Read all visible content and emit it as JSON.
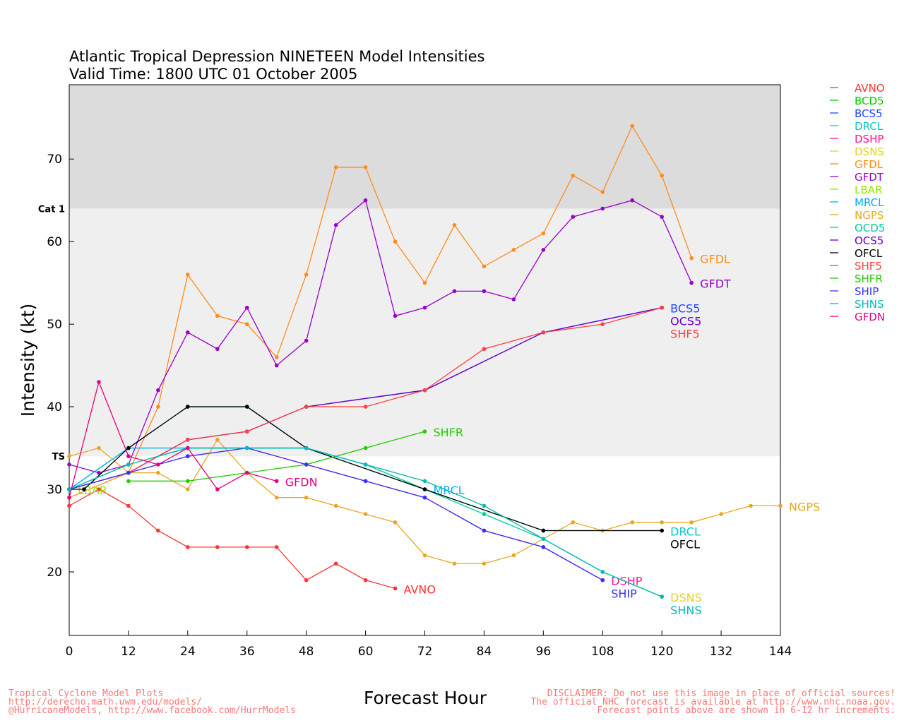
{
  "chart_data": {
    "type": "line",
    "title": [
      "Atlantic Tropical Depression NINETEEN Model Intensities",
      "Valid Time: 1800 UTC 01 October 2005"
    ],
    "xlabel": "Forecast Hour",
    "ylabel": "Intensity (kt)",
    "xlim": [
      0,
      144
    ],
    "ylim": [
      12.3,
      79
    ],
    "xticks": [
      0,
      12,
      24,
      36,
      48,
      60,
      72,
      84,
      96,
      108,
      120,
      132,
      144
    ],
    "yticks": [
      20,
      30,
      40,
      50,
      60,
      70
    ],
    "bands": [
      {
        "label": "TS",
        "from": 34,
        "to": 64,
        "color": "#efefef"
      },
      {
        "label": "Cat 1",
        "from": 64,
        "to": 79,
        "color": "#dcdcdc"
      }
    ],
    "legend_position": "right",
    "series": [
      {
        "name": "AVNO",
        "color": "#ff3333",
        "label": true,
        "points": [
          [
            0,
            28
          ],
          [
            6,
            30
          ],
          [
            12,
            28
          ],
          [
            18,
            25
          ],
          [
            24,
            23
          ],
          [
            30,
            23
          ],
          [
            36,
            23
          ],
          [
            42,
            23
          ],
          [
            48,
            19
          ],
          [
            54,
            21
          ],
          [
            60,
            19
          ],
          [
            66,
            18
          ]
        ]
      },
      {
        "name": "BCD5",
        "color": "#00cc00",
        "label": false,
        "points": []
      },
      {
        "name": "BCS5",
        "color": "#2244ff",
        "label": true,
        "points": [
          [
            0,
            30
          ],
          [
            12,
            32
          ],
          [
            24,
            36
          ],
          [
            36,
            37
          ],
          [
            48,
            40
          ],
          [
            72,
            42
          ],
          [
            96,
            49
          ],
          [
            120,
            52
          ]
        ]
      },
      {
        "name": "DRCL",
        "color": "#00cccc",
        "label": true,
        "points": [
          [
            0,
            30
          ],
          [
            12,
            35
          ],
          [
            24,
            40
          ],
          [
            36,
            40
          ],
          [
            48,
            35
          ],
          [
            72,
            30
          ],
          [
            96,
            25
          ],
          [
            120,
            25
          ]
        ]
      },
      {
        "name": "DSHP",
        "color": "#ff1493",
        "label": true,
        "points": [
          [
            0,
            30
          ],
          [
            12,
            32
          ],
          [
            24,
            34
          ],
          [
            36,
            35
          ],
          [
            48,
            33
          ],
          [
            60,
            31
          ],
          [
            72,
            29
          ],
          [
            84,
            25
          ],
          [
            96,
            23
          ],
          [
            108,
            19
          ]
        ]
      },
      {
        "name": "DSNS",
        "color": "#e6d030",
        "label": true,
        "points": [
          [
            0,
            30
          ],
          [
            12,
            33
          ],
          [
            24,
            35
          ],
          [
            36,
            35
          ],
          [
            48,
            35
          ],
          [
            60,
            33
          ],
          [
            72,
            31
          ],
          [
            84,
            28
          ],
          [
            96,
            24
          ],
          [
            108,
            20
          ],
          [
            120,
            17
          ]
        ]
      },
      {
        "name": "GFDL",
        "color": "#ff8c1a",
        "label": true,
        "points": [
          [
            0,
            29
          ],
          [
            12,
            32
          ],
          [
            18,
            40
          ],
          [
            24,
            56
          ],
          [
            30,
            51
          ],
          [
            36,
            50
          ],
          [
            42,
            46
          ],
          [
            48,
            56
          ],
          [
            54,
            69
          ],
          [
            60,
            69
          ],
          [
            66,
            60
          ],
          [
            72,
            55
          ],
          [
            78,
            62
          ],
          [
            84,
            57
          ],
          [
            90,
            59
          ],
          [
            96,
            61
          ],
          [
            102,
            68
          ],
          [
            108,
            66
          ],
          [
            114,
            74
          ],
          [
            120,
            68
          ],
          [
            126,
            58
          ]
        ]
      },
      {
        "name": "GFDT",
        "color": "#9900cc",
        "label": true,
        "points": [
          [
            0,
            33
          ],
          [
            6,
            32
          ],
          [
            12,
            33
          ],
          [
            18,
            42
          ],
          [
            24,
            49
          ],
          [
            30,
            47
          ],
          [
            36,
            52
          ],
          [
            42,
            45
          ],
          [
            48,
            48
          ],
          [
            54,
            62
          ],
          [
            60,
            65
          ],
          [
            66,
            51
          ],
          [
            72,
            52
          ],
          [
            78,
            54
          ],
          [
            84,
            54
          ],
          [
            90,
            53
          ],
          [
            96,
            59
          ],
          [
            102,
            63
          ],
          [
            108,
            64
          ],
          [
            114,
            65
          ],
          [
            120,
            63
          ],
          [
            126,
            55
          ]
        ]
      },
      {
        "name": "LBAR",
        "color": "#99e600",
        "label": true,
        "points": [
          [
            0,
            30
          ]
        ]
      },
      {
        "name": "MRCL",
        "color": "#00aaff",
        "label": true,
        "points": [
          [
            0,
            30
          ],
          [
            12,
            35
          ],
          [
            24,
            35
          ],
          [
            36,
            35
          ],
          [
            48,
            35
          ],
          [
            60,
            33
          ],
          [
            72,
            30
          ]
        ]
      },
      {
        "name": "NGPS",
        "color": "#e6a820",
        "label": true,
        "points": [
          [
            0,
            34
          ],
          [
            6,
            35
          ],
          [
            12,
            32
          ],
          [
            18,
            32
          ],
          [
            24,
            30
          ],
          [
            30,
            36
          ],
          [
            36,
            32
          ],
          [
            42,
            29
          ],
          [
            48,
            29
          ],
          [
            54,
            28
          ],
          [
            60,
            27
          ],
          [
            66,
            26
          ],
          [
            72,
            22
          ],
          [
            78,
            21
          ],
          [
            84,
            21
          ],
          [
            90,
            22
          ],
          [
            96,
            24
          ],
          [
            102,
            26
          ],
          [
            108,
            25
          ],
          [
            114,
            26
          ],
          [
            120,
            26
          ],
          [
            126,
            26
          ],
          [
            132,
            27
          ],
          [
            138,
            28
          ],
          [
            144,
            28
          ]
        ]
      },
      {
        "name": "OCD5",
        "color": "#00cc99",
        "label": false,
        "points": [
          [
            0,
            30
          ],
          [
            12,
            33
          ],
          [
            24,
            35
          ],
          [
            36,
            35
          ],
          [
            48,
            35
          ],
          [
            60,
            33
          ],
          [
            72,
            30
          ],
          [
            84,
            27
          ],
          [
            96,
            24
          ],
          [
            108,
            20
          ],
          [
            120,
            17
          ]
        ]
      },
      {
        "name": "OCS5",
        "color": "#6600cc",
        "label": true,
        "points": [
          [
            0,
            30
          ],
          [
            12,
            32
          ],
          [
            24,
            36
          ],
          [
            36,
            37
          ],
          [
            48,
            40
          ],
          [
            72,
            42
          ],
          [
            96,
            49
          ],
          [
            120,
            52
          ]
        ]
      },
      {
        "name": "OFCL",
        "color": "#000000",
        "label": true,
        "points": [
          [
            0,
            30
          ],
          [
            3,
            30
          ],
          [
            12,
            35
          ],
          [
            24,
            40
          ],
          [
            36,
            40
          ],
          [
            48,
            35
          ],
          [
            72,
            30
          ],
          [
            96,
            25
          ],
          [
            120,
            25
          ]
        ]
      },
      {
        "name": "SHF5",
        "color": "#ff4040",
        "label": true,
        "points": [
          [
            0,
            30
          ],
          [
            12,
            32
          ],
          [
            24,
            36
          ],
          [
            36,
            37
          ],
          [
            48,
            40
          ],
          [
            60,
            40
          ],
          [
            72,
            42
          ],
          [
            84,
            47
          ],
          [
            96,
            49
          ],
          [
            108,
            50
          ],
          [
            120,
            52
          ]
        ]
      },
      {
        "name": "SHFR",
        "color": "#22cc00",
        "label": true,
        "points": [
          [
            12,
            31
          ],
          [
            24,
            31
          ],
          [
            48,
            33
          ],
          [
            60,
            35
          ],
          [
            72,
            37
          ]
        ]
      },
      {
        "name": "SHIP",
        "color": "#3333ff",
        "label": true,
        "points": [
          [
            0,
            30
          ],
          [
            12,
            32
          ],
          [
            24,
            34
          ],
          [
            36,
            35
          ],
          [
            48,
            33
          ],
          [
            60,
            31
          ],
          [
            72,
            29
          ],
          [
            84,
            25
          ],
          [
            96,
            23
          ],
          [
            108,
            19
          ]
        ]
      },
      {
        "name": "SHNS",
        "color": "#00bbbb",
        "label": true,
        "points": [
          [
            0,
            30
          ],
          [
            12,
            33
          ],
          [
            24,
            35
          ],
          [
            36,
            35
          ],
          [
            48,
            35
          ],
          [
            60,
            33
          ],
          [
            72,
            31
          ],
          [
            84,
            28
          ],
          [
            96,
            24
          ],
          [
            108,
            20
          ],
          [
            120,
            17
          ]
        ]
      },
      {
        "name": "GFDN",
        "color": "#e6007e",
        "label": true,
        "points": [
          [
            0,
            29
          ],
          [
            6,
            43
          ],
          [
            12,
            34
          ],
          [
            18,
            33
          ],
          [
            24,
            35
          ],
          [
            30,
            30
          ],
          [
            36,
            32
          ],
          [
            42,
            31
          ]
        ]
      }
    ]
  },
  "footer": {
    "left": [
      "Tropical Cyclone Model Plots",
      "http://derecho.math.uwm.edu/models/",
      "@HurricaneModels, http://www.facebook.com/HurrModels"
    ],
    "right": [
      "DISCLAIMER: Do not use this image in place of official sources!",
      "The official NHC forecast is available at http://www.nhc.noaa.gov.",
      "Forecast points above are shown in 6-12 hr increments."
    ]
  }
}
